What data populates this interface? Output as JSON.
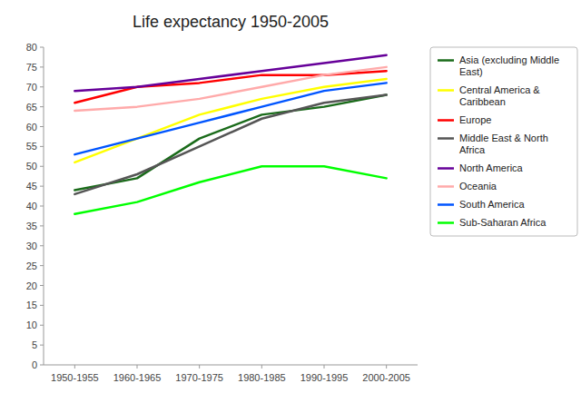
{
  "chart_data": {
    "type": "line",
    "title": "Life expectancy 1950-2005",
    "categories": [
      "1950-1955",
      "1960-1965",
      "1970-1975",
      "1980-1985",
      "1990-1995",
      "2000-2005"
    ],
    "series": [
      {
        "name": "Asia (excluding Middle\nEast)",
        "color": "#1a6b1a",
        "values": [
          44,
          47,
          57,
          63,
          65,
          68
        ]
      },
      {
        "name": "Central America &\nCaribbean",
        "color": "#ffff00",
        "values": [
          51,
          57,
          63,
          67,
          70,
          72
        ]
      },
      {
        "name": "Europe",
        "color": "#ff0000",
        "values": [
          66,
          70,
          71,
          73,
          73,
          74
        ]
      },
      {
        "name": "Middle East & North\nAfrica",
        "color": "#555555",
        "values": [
          43,
          48,
          55,
          62,
          66,
          68
        ]
      },
      {
        "name": "North America",
        "color": "#660099",
        "values": [
          69,
          70,
          72,
          74,
          76,
          78
        ]
      },
      {
        "name": "Oceania",
        "color": "#ffaaaa",
        "values": [
          64,
          65,
          67,
          70,
          73,
          75
        ]
      },
      {
        "name": "South America",
        "color": "#0055ff",
        "values": [
          53,
          57,
          61,
          65,
          69,
          71
        ]
      },
      {
        "name": "Sub-Saharan Africa",
        "color": "#00ff00",
        "values": [
          38,
          41,
          46,
          50,
          50,
          47
        ]
      }
    ],
    "ylim": [
      0,
      80
    ],
    "yticks": [
      0,
      5,
      10,
      15,
      20,
      25,
      30,
      35,
      40,
      45,
      50,
      55,
      60,
      65,
      70,
      75,
      80
    ],
    "grid": false,
    "legend": "upper right"
  }
}
